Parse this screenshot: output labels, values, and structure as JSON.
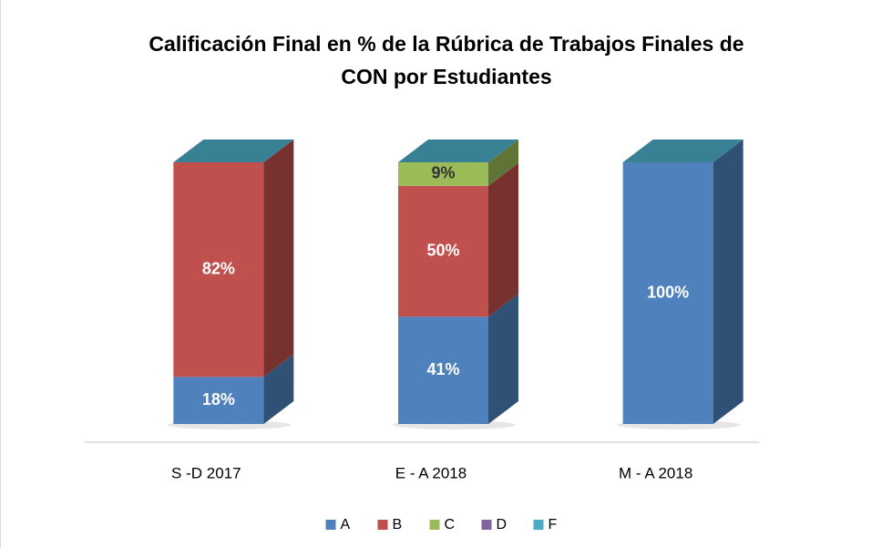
{
  "chart_data": {
    "type": "bar3d",
    "stacked": true,
    "title": "Calificación Final en % de la Rúbrica de Trabajos Finales de CON por Estudiantes",
    "categories": [
      "S -D 2017",
      "E - A 2018",
      "M - A 2018"
    ],
    "series": [
      {
        "name": "A",
        "color": "#4f81bd",
        "label_color": "#ffffff",
        "values": [
          18,
          41,
          100
        ],
        "value_labels": [
          "18%",
          "41%",
          "100%"
        ]
      },
      {
        "name": "B",
        "color": "#c0504d",
        "label_color": "#ffffff",
        "values": [
          82,
          50,
          0
        ],
        "value_labels": [
          "82%",
          "50%",
          null
        ]
      },
      {
        "name": "C",
        "color": "#9bbb59",
        "label_color": "#333333",
        "values": [
          0,
          9,
          0
        ],
        "value_labels": [
          null,
          "9%",
          null
        ]
      },
      {
        "name": "D",
        "color": "#8064a2",
        "label_color": "#ffffff",
        "values": [
          0,
          0,
          0
        ],
        "value_labels": [
          null,
          null,
          null
        ]
      },
      {
        "name": "F",
        "color": "#4bacc6",
        "label_color": "#ffffff",
        "values": [
          0,
          0,
          0
        ],
        "value_labels": [
          null,
          null,
          null
        ]
      }
    ],
    "legend": "bottom"
  }
}
